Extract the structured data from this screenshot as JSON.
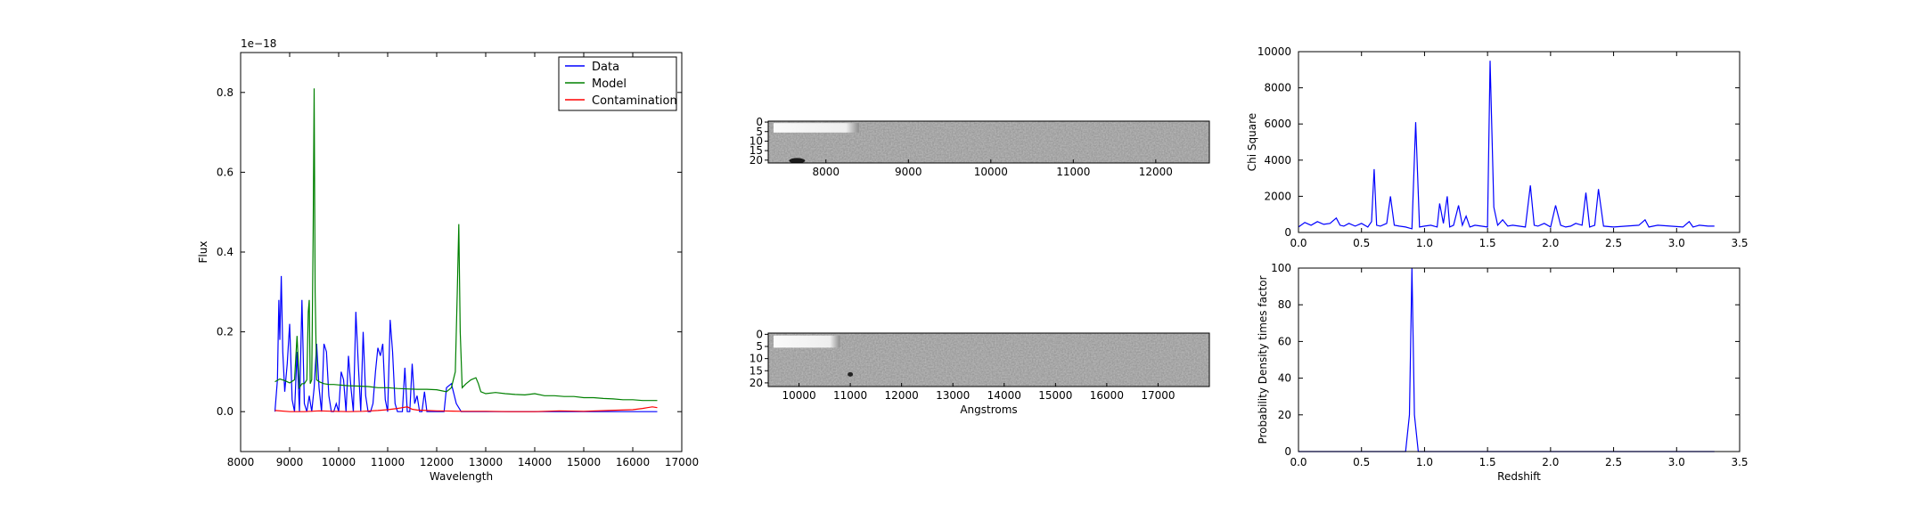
{
  "chart_data": [
    {
      "panel": "spectrum",
      "type": "line",
      "xlabel": "Wavelength",
      "ylabel": "Flux",
      "offset_text": "1e−18",
      "xlim": [
        8000,
        17000
      ],
      "ylim": [
        -0.1,
        0.9
      ],
      "xticks": [
        8000,
        9000,
        10000,
        11000,
        12000,
        13000,
        14000,
        15000,
        16000,
        17000
      ],
      "yticks": [
        0.0,
        0.2,
        0.4,
        0.6,
        0.8
      ],
      "ytick_labels": [
        "0.0",
        "0.2",
        "0.4",
        "0.6",
        "0.8"
      ],
      "legend_position": "top-right",
      "series": [
        {
          "name": "Data",
          "color": "#0000ff",
          "x": [
            8700,
            8750,
            8780,
            8800,
            8830,
            8860,
            8900,
            8950,
            9000,
            9050,
            9100,
            9150,
            9200,
            9250,
            9300,
            9350,
            9400,
            9450,
            9500,
            9550,
            9600,
            9650,
            9700,
            9750,
            9800,
            9850,
            9900,
            9950,
            10000,
            10050,
            10100,
            10150,
            10200,
            10250,
            10300,
            10350,
            10400,
            10450,
            10500,
            10550,
            10600,
            10650,
            10700,
            10750,
            10800,
            10850,
            10900,
            10950,
            11000,
            11050,
            11100,
            11150,
            11200,
            11250,
            11300,
            11350,
            11400,
            11450,
            11500,
            11550,
            11600,
            11650,
            11700,
            11750,
            11800,
            11850,
            11900,
            11950,
            12000,
            12050,
            12100,
            12150,
            12200,
            12300,
            12400,
            12500,
            12600,
            12700,
            12750,
            12800,
            12850,
            12900,
            13000,
            13100,
            13200,
            13300,
            13400,
            13500,
            13600,
            13700,
            13800,
            13900,
            14000,
            14100,
            14200,
            14300,
            14350,
            14400,
            14450,
            14500,
            14600,
            14700,
            14800,
            14900,
            15000,
            15100,
            15200,
            15250,
            15300,
            15350,
            15400,
            15450,
            15500,
            15600,
            15700,
            15750,
            15800,
            15850,
            15900,
            15950,
            16000,
            16050,
            16100,
            16150,
            16200,
            16250,
            16300,
            16350,
            16400,
            16450,
            16500
          ],
          "y": [
            0.0,
            0.08,
            0.28,
            0.18,
            0.34,
            0.15,
            0.05,
            0.12,
            0.22,
            0.03,
            0.0,
            0.15,
            0.0,
            0.28,
            0.02,
            0.0,
            0.04,
            0.0,
            0.06,
            0.17,
            0.06,
            0.0,
            0.17,
            0.15,
            0.04,
            0.0,
            0.0,
            0.02,
            0.0,
            0.1,
            0.08,
            0.0,
            0.14,
            0.06,
            0.0,
            0.25,
            0.12,
            0.0,
            0.2,
            0.04,
            0.0,
            0.0,
            0.02,
            0.1,
            0.16,
            0.14,
            0.17,
            0.03,
            0.0,
            0.23,
            0.15,
            0.02,
            0.0,
            0.0,
            0.0,
            0.11,
            0.0,
            0.0,
            0.12,
            0.02,
            0.04,
            0.0,
            0.0,
            0.05,
            0.0,
            0.0,
            0.0,
            0.0,
            0.0,
            0.0,
            0.0,
            0.0,
            0.06,
            0.07,
            0.02,
            0.0,
            0.0,
            0.0,
            0.0,
            0.0,
            0.0,
            0.0,
            0.0,
            0.0,
            0.0,
            0.0,
            0.0,
            0.0,
            0.0,
            0.0,
            0.0,
            0.0,
            0.0,
            0.0,
            0.0,
            0.0,
            0.0,
            0.0,
            0.0,
            0.0,
            0.0,
            0.0,
            0.0,
            0.0,
            0.0,
            0.0,
            0.0,
            0.0,
            0.0,
            0.0,
            0.0,
            0.0,
            0.0,
            0.0,
            0.0,
            0.0,
            0.0,
            0.0,
            0.0,
            0.0,
            0.0,
            0.0,
            0.0,
            0.0,
            0.0,
            0.0,
            0.0,
            0.0,
            0.0,
            0.0,
            0.0
          ]
        },
        {
          "name": "Model",
          "color": "#008000",
          "x": [
            8700,
            8800,
            8900,
            9000,
            9100,
            9150,
            9200,
            9250,
            9300,
            9350,
            9380,
            9400,
            9420,
            9450,
            9480,
            9500,
            9520,
            9550,
            9600,
            9700,
            9800,
            9900,
            10000,
            10200,
            10400,
            10600,
            10800,
            11000,
            11200,
            11400,
            11600,
            11800,
            12000,
            12200,
            12300,
            12380,
            12420,
            12450,
            12480,
            12520,
            12600,
            12700,
            12800,
            12850,
            12900,
            13000,
            13200,
            13400,
            13600,
            13800,
            14000,
            14200,
            14400,
            14600,
            14800,
            15000,
            15200,
            15400,
            15600,
            15800,
            16000,
            16200,
            16400,
            16500
          ],
          "y": [
            0.075,
            0.082,
            0.078,
            0.072,
            0.08,
            0.19,
            0.06,
            0.07,
            0.07,
            0.08,
            0.25,
            0.28,
            0.07,
            0.08,
            0.45,
            0.81,
            0.3,
            0.08,
            0.075,
            0.07,
            0.068,
            0.068,
            0.067,
            0.065,
            0.064,
            0.063,
            0.06,
            0.06,
            0.058,
            0.057,
            0.056,
            0.056,
            0.055,
            0.05,
            0.06,
            0.1,
            0.3,
            0.47,
            0.2,
            0.06,
            0.07,
            0.08,
            0.085,
            0.07,
            0.05,
            0.045,
            0.048,
            0.045,
            0.043,
            0.042,
            0.045,
            0.04,
            0.04,
            0.038,
            0.038,
            0.035,
            0.035,
            0.033,
            0.032,
            0.03,
            0.03,
            0.028,
            0.028,
            0.028
          ]
        },
        {
          "name": "Contamination",
          "color": "#ff0000",
          "x": [
            8700,
            9000,
            9300,
            9600,
            9900,
            10200,
            10500,
            10800,
            11000,
            11200,
            11300,
            11400,
            11500,
            11600,
            11800,
            12000,
            12500,
            13000,
            13500,
            14000,
            14500,
            15000,
            15500,
            16000,
            16200,
            16300,
            16400,
            16500
          ],
          "y": [
            0.003,
            0.0,
            0.0,
            0.002,
            0.001,
            0.0,
            0.001,
            0.003,
            0.005,
            0.008,
            0.01,
            0.012,
            0.006,
            0.004,
            0.003,
            0.002,
            0.001,
            0.001,
            0.0,
            0.0,
            0.002,
            0.001,
            0.003,
            0.005,
            0.008,
            0.01,
            0.012,
            0.01
          ]
        }
      ]
    },
    {
      "panel": "2d-spectrum-top",
      "type": "heatmap",
      "colormap": "gray",
      "xlim": [
        7300,
        12650
      ],
      "xticks": [
        8000,
        9000,
        10000,
        11000,
        12000
      ],
      "yticks": [
        0,
        5,
        10,
        15,
        20
      ],
      "rows": 22,
      "bright_band_end_x": 8400,
      "dark_blob_x": 7650
    },
    {
      "panel": "2d-spectrum-bottom",
      "type": "heatmap",
      "colormap": "gray",
      "xlabel": "Angstroms",
      "xlim": [
        9400,
        18000
      ],
      "xticks": [
        10000,
        11000,
        12000,
        13000,
        14000,
        15000,
        16000,
        17000
      ],
      "yticks": [
        0,
        5,
        10,
        15,
        20
      ],
      "rows": 22,
      "bright_band_end_x": 10800,
      "dark_dot_x": 11000
    },
    {
      "panel": "chi-square",
      "type": "line",
      "xlabel": "",
      "ylabel": "Chi Square",
      "xlim": [
        0.0,
        3.5
      ],
      "ylim": [
        0,
        10000
      ],
      "xticks": [
        0.0,
        0.5,
        1.0,
        1.5,
        2.0,
        2.5,
        3.0,
        3.5
      ],
      "xtick_labels": [
        "0.0",
        "0.5",
        "1.0",
        "1.5",
        "2.0",
        "2.5",
        "3.0",
        "3.5"
      ],
      "yticks": [
        0,
        2000,
        4000,
        6000,
        8000,
        10000
      ],
      "series": [
        {
          "color": "#0000ff",
          "x": [
            0.0,
            0.05,
            0.1,
            0.15,
            0.2,
            0.25,
            0.3,
            0.33,
            0.36,
            0.4,
            0.45,
            0.5,
            0.55,
            0.58,
            0.6,
            0.62,
            0.65,
            0.7,
            0.73,
            0.76,
            0.8,
            0.85,
            0.9,
            0.93,
            0.96,
            1.0,
            1.05,
            1.1,
            1.12,
            1.15,
            1.18,
            1.2,
            1.23,
            1.27,
            1.3,
            1.33,
            1.36,
            1.4,
            1.45,
            1.5,
            1.52,
            1.55,
            1.58,
            1.62,
            1.66,
            1.7,
            1.75,
            1.8,
            1.84,
            1.87,
            1.9,
            1.95,
            2.0,
            2.04,
            2.08,
            2.12,
            2.16,
            2.2,
            2.25,
            2.28,
            2.31,
            2.35,
            2.38,
            2.42,
            2.5,
            2.6,
            2.7,
            2.75,
            2.78,
            2.85,
            2.95,
            3.05,
            3.1,
            3.13,
            3.18,
            3.25,
            3.3
          ],
          "y": [
            300,
            550,
            400,
            600,
            450,
            500,
            800,
            400,
            350,
            500,
            350,
            500,
            300,
            600,
            3500,
            400,
            350,
            500,
            2000,
            400,
            350,
            300,
            200,
            6100,
            300,
            350,
            400,
            300,
            1600,
            500,
            2000,
            300,
            400,
            1500,
            400,
            900,
            300,
            400,
            350,
            300,
            9500,
            1400,
            400,
            700,
            350,
            400,
            350,
            300,
            2600,
            400,
            350,
            500,
            300,
            1500,
            400,
            300,
            350,
            500,
            400,
            2200,
            300,
            400,
            2400,
            350,
            300,
            350,
            400,
            700,
            300,
            400,
            350,
            300,
            600,
            300,
            400,
            350,
            350
          ]
        }
      ]
    },
    {
      "panel": "probability-density",
      "type": "line",
      "xlabel": "Redshift",
      "ylabel": "Probability Density times factor",
      "xlim": [
        0.0,
        3.5
      ],
      "ylim": [
        0,
        100
      ],
      "xticks": [
        0.0,
        0.5,
        1.0,
        1.5,
        2.0,
        2.5,
        3.0,
        3.5
      ],
      "xtick_labels": [
        "0.0",
        "0.5",
        "1.0",
        "1.5",
        "2.0",
        "2.5",
        "3.0",
        "3.5"
      ],
      "yticks": [
        0,
        20,
        40,
        60,
        80,
        100
      ],
      "series": [
        {
          "color": "#0000ff",
          "x": [
            0.0,
            0.85,
            0.88,
            0.9,
            0.92,
            0.95,
            3.3
          ],
          "y": [
            0,
            0,
            20,
            100,
            20,
            0,
            0
          ]
        }
      ]
    }
  ]
}
